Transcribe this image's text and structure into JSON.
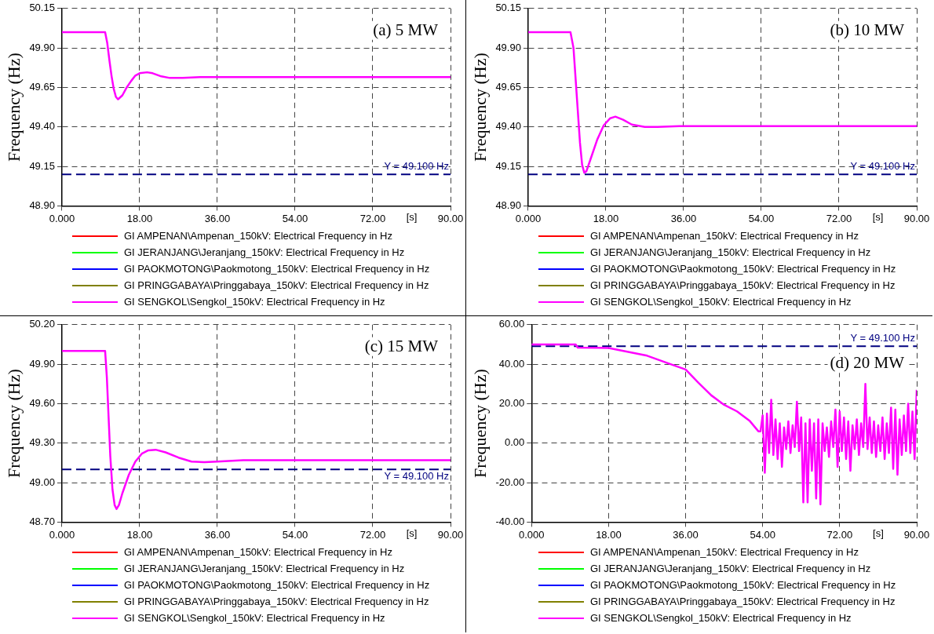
{
  "chart_data": [
    {
      "type": "line",
      "title": "(a) 5 MW",
      "ylabel": "Frequency (Hz)",
      "xlabel": "[s]",
      "grid": true,
      "legend": "bottom",
      "xlim": [
        0,
        90
      ],
      "xticks": [
        {
          "value": 0,
          "label": "0.000"
        },
        {
          "value": 18,
          "label": "18.00"
        },
        {
          "value": 36,
          "label": "36.00"
        },
        {
          "value": 54,
          "label": "54.00"
        },
        {
          "value": 72,
          "label": "72.00"
        },
        {
          "value": 90,
          "label": "90.00"
        }
      ],
      "ylim": [
        48.9,
        50.15
      ],
      "yticks": [
        {
          "value": 48.9,
          "label": "48.90"
        },
        {
          "value": 49.15,
          "label": "49.15"
        },
        {
          "value": 49.4,
          "label": "49.40"
        },
        {
          "value": 49.65,
          "label": "49.65"
        },
        {
          "value": 49.9,
          "label": "49.90"
        },
        {
          "value": 50.15,
          "label": "50.15"
        }
      ],
      "ref_lines": [
        {
          "axis": "y",
          "value": 49.1,
          "label": "Y = 49.100 Hz",
          "color": "#000080",
          "line_style": "dashed"
        }
      ],
      "x": [
        0,
        10,
        10.5,
        11,
        11.5,
        12,
        12.5,
        13,
        14,
        15,
        16,
        17,
        18,
        19.7,
        21,
        23,
        25,
        28,
        32,
        40,
        90
      ],
      "series": [
        {
          "name": "GI AMPENAN\\Ampenan_150kV: Electrical Frequency in Hz",
          "color": "#ff0000",
          "values": [
            null,
            null,
            null,
            null,
            null,
            null,
            null,
            null,
            null,
            null,
            null,
            null,
            null,
            null,
            null,
            null,
            null,
            null,
            null,
            null,
            null
          ]
        },
        {
          "name": "GI JERANJANG\\Jeranjang_150kV: Electrical Frequency in Hz",
          "color": "#00ff00",
          "values": [
            null,
            null,
            null,
            null,
            null,
            null,
            null,
            null,
            null,
            null,
            null,
            null,
            null,
            null,
            null,
            null,
            null,
            null,
            null,
            null,
            null
          ]
        },
        {
          "name": "GI PAOKMOTONG\\Paokmotong_150kV: Electrical Frequency in Hz",
          "color": "#0000ff",
          "values": [
            null,
            null,
            null,
            null,
            null,
            null,
            null,
            null,
            null,
            null,
            null,
            null,
            null,
            null,
            null,
            null,
            null,
            null,
            null,
            null,
            null
          ]
        },
        {
          "name": "GI PRINGGABAYA\\Pringgabaya_150kV: Electrical Frequency in Hz",
          "color": "#808000",
          "values": [
            null,
            null,
            null,
            null,
            null,
            null,
            null,
            null,
            null,
            null,
            null,
            null,
            null,
            null,
            null,
            null,
            null,
            null,
            null,
            null,
            null
          ]
        },
        {
          "name": "GI SENGKOL\\Sengkol_150kV: Electrical Frequency in Hz",
          "color": "#ff00ff",
          "values": [
            50,
            50,
            49.93,
            49.82,
            49.72,
            49.64,
            49.59,
            49.575,
            49.6,
            49.65,
            49.69,
            49.725,
            49.74,
            49.746,
            49.74,
            49.72,
            49.71,
            49.71,
            49.715,
            49.715,
            49.715
          ]
        }
      ]
    },
    {
      "type": "line",
      "title": "(b) 10 MW",
      "ylabel": "Frequency (Hz)",
      "xlabel": "[s]",
      "grid": true,
      "legend": "bottom",
      "xlim": [
        0,
        90
      ],
      "xticks": [
        {
          "value": 0,
          "label": "0.000"
        },
        {
          "value": 18,
          "label": "18.00"
        },
        {
          "value": 36,
          "label": "36.00"
        },
        {
          "value": 54,
          "label": "54.00"
        },
        {
          "value": 72,
          "label": "72.00"
        },
        {
          "value": 90,
          "label": "90.00"
        }
      ],
      "ylim": [
        48.9,
        50.15
      ],
      "yticks": [
        {
          "value": 48.9,
          "label": "48.90"
        },
        {
          "value": 49.15,
          "label": "49.15"
        },
        {
          "value": 49.4,
          "label": "49.40"
        },
        {
          "value": 49.65,
          "label": "49.65"
        },
        {
          "value": 49.9,
          "label": "49.90"
        },
        {
          "value": 50.15,
          "label": "50.15"
        }
      ],
      "ref_lines": [
        {
          "axis": "y",
          "value": 49.1,
          "label": "Y = 49.100 Hz",
          "color": "#000080",
          "line_style": "dashed"
        }
      ],
      "x": [
        0,
        9.8,
        10.5,
        11,
        11.5,
        12,
        12.5,
        13,
        13.5,
        14.5,
        16,
        17.5,
        19,
        20.2,
        22,
        24,
        27,
        30,
        35,
        90
      ],
      "series": [
        {
          "name": "GI AMPENAN\\Ampenan_150kV: Electrical Frequency in Hz",
          "color": "#ff0000",
          "values": [
            null,
            null,
            null,
            null,
            null,
            null,
            null,
            null,
            null,
            null,
            null,
            null,
            null,
            null,
            null,
            null,
            null,
            null,
            null,
            null
          ]
        },
        {
          "name": "GI JERANJANG\\Jeranjang_150kV: Electrical Frequency in Hz",
          "color": "#00ff00",
          "values": [
            null,
            null,
            null,
            null,
            null,
            null,
            null,
            null,
            null,
            null,
            null,
            null,
            null,
            null,
            null,
            null,
            null,
            null,
            null,
            null
          ]
        },
        {
          "name": "GI PAOKMOTONG\\Paokmotong_150kV: Electrical Frequency in Hz",
          "color": "#0000ff",
          "values": [
            null,
            null,
            null,
            null,
            null,
            null,
            null,
            null,
            null,
            null,
            null,
            null,
            null,
            null,
            null,
            null,
            null,
            null,
            null,
            null
          ]
        },
        {
          "name": "GI PRINGGABAYA\\Pringgabaya_150kV: Electrical Frequency in Hz",
          "color": "#808000",
          "values": [
            null,
            null,
            null,
            null,
            null,
            null,
            null,
            null,
            null,
            null,
            null,
            null,
            null,
            null,
            null,
            null,
            null,
            null,
            null,
            null
          ]
        },
        {
          "name": "GI SENGKOL\\Sengkol_150kV: Electrical Frequency in Hz",
          "color": "#ff00ff",
          "values": [
            50,
            50,
            49.9,
            49.7,
            49.5,
            49.3,
            49.16,
            49.11,
            49.12,
            49.2,
            49.32,
            49.41,
            49.455,
            49.465,
            49.445,
            49.415,
            49.4,
            49.4,
            49.405,
            49.405
          ]
        }
      ]
    },
    {
      "type": "line",
      "title": "(c) 15 MW",
      "ylabel": "Frequency (Hz)",
      "xlabel": "[s]",
      "grid": true,
      "legend": "bottom",
      "xlim": [
        0,
        90
      ],
      "xticks": [
        {
          "value": 0,
          "label": "0.000"
        },
        {
          "value": 18,
          "label": "18.00"
        },
        {
          "value": 36,
          "label": "36.00"
        },
        {
          "value": 54,
          "label": "54.00"
        },
        {
          "value": 72,
          "label": "72.00"
        },
        {
          "value": 90,
          "label": "90.00"
        }
      ],
      "ylim": [
        48.7,
        50.2
      ],
      "yticks": [
        {
          "value": 48.7,
          "label": "48.70"
        },
        {
          "value": 49.0,
          "label": "49.00"
        },
        {
          "value": 49.3,
          "label": "49.30"
        },
        {
          "value": 49.6,
          "label": "49.60"
        },
        {
          "value": 49.9,
          "label": "49.90"
        },
        {
          "value": 50.2,
          "label": "50.20"
        }
      ],
      "ref_lines": [
        {
          "axis": "y",
          "value": 49.1,
          "label": "Y = 49.100 Hz",
          "color": "#000080",
          "line_style": "dashed"
        }
      ],
      "x": [
        0,
        10,
        10.4,
        10.8,
        11.2,
        11.7,
        12.2,
        12.65,
        13.2,
        14,
        15.5,
        17,
        18.5,
        20,
        21.7,
        24,
        27,
        30,
        33,
        36,
        42,
        90
      ],
      "series": [
        {
          "name": "GI AMPENAN\\Ampenan_150kV: Electrical Frequency in Hz",
          "color": "#ff0000",
          "values": [
            null,
            null,
            null,
            null,
            null,
            null,
            null,
            null,
            null,
            null,
            null,
            null,
            null,
            null,
            null,
            null,
            null,
            null,
            null,
            null,
            null,
            null
          ]
        },
        {
          "name": "GI JERANJANG\\Jeranjang_150kV: Electrical Frequency in Hz",
          "color": "#00ff00",
          "values": [
            null,
            null,
            null,
            null,
            null,
            null,
            null,
            null,
            null,
            null,
            null,
            null,
            null,
            null,
            null,
            null,
            null,
            null,
            null,
            null,
            null,
            null
          ]
        },
        {
          "name": "GI PAOKMOTONG\\Paokmotong_150kV: Electrical Frequency in Hz",
          "color": "#0000ff",
          "values": [
            null,
            null,
            null,
            null,
            null,
            null,
            null,
            null,
            null,
            null,
            null,
            null,
            null,
            null,
            null,
            null,
            null,
            null,
            null,
            null,
            null,
            null
          ]
        },
        {
          "name": "GI PRINGGABAYA\\Pringgabaya_150kV: Electrical Frequency in Hz",
          "color": "#808000",
          "values": [
            null,
            null,
            null,
            null,
            null,
            null,
            null,
            null,
            null,
            null,
            null,
            null,
            null,
            null,
            null,
            null,
            null,
            null,
            null,
            null,
            null,
            null
          ]
        },
        {
          "name": "GI SENGKOL\\Sengkol_150kV: Electrical Frequency in Hz",
          "color": "#ff00ff",
          "values": [
            50,
            50,
            49.8,
            49.5,
            49.2,
            48.95,
            48.83,
            48.8,
            48.83,
            48.92,
            49.06,
            49.16,
            49.22,
            49.245,
            49.25,
            49.23,
            49.19,
            49.16,
            49.155,
            49.16,
            49.17,
            49.17
          ]
        }
      ]
    },
    {
      "type": "line",
      "title": "(d) 20 MW",
      "ylabel": "Frequency (Hz)",
      "xlabel": "[s]",
      "grid": true,
      "legend": "bottom",
      "xlim": [
        0,
        90
      ],
      "xticks": [
        {
          "value": 0,
          "label": "0.000"
        },
        {
          "value": 18,
          "label": "18.00"
        },
        {
          "value": 36,
          "label": "36.00"
        },
        {
          "value": 54,
          "label": "54.00"
        },
        {
          "value": 72,
          "label": "72.00"
        },
        {
          "value": 90,
          "label": "90.00"
        }
      ],
      "ylim": [
        -40,
        60
      ],
      "yticks": [
        {
          "value": -40,
          "label": "-40.00"
        },
        {
          "value": -20,
          "label": "-20.00"
        },
        {
          "value": 0,
          "label": "0.00"
        },
        {
          "value": 20,
          "label": "20.00"
        },
        {
          "value": 40,
          "label": "40.00"
        },
        {
          "value": 60,
          "label": "60.00"
        }
      ],
      "ref_lines": [
        {
          "axis": "y",
          "value": 49.1,
          "label": "Y = 49.100 Hz",
          "color": "#000080",
          "line_style": "dashed"
        }
      ],
      "x": [
        0,
        10.3,
        10.8,
        18,
        27,
        33,
        36,
        39,
        42,
        45,
        48,
        51,
        53,
        53.5,
        54,
        54.5,
        55,
        55.5,
        56,
        56.5,
        57,
        57.5,
        58,
        58.5,
        59,
        59.5,
        60,
        60.5,
        61,
        61.5,
        62,
        62.5,
        63,
        63.5,
        64,
        64.5,
        65,
        65.5,
        66,
        66.5,
        67,
        67.5,
        68,
        68.5,
        69,
        69.5,
        70,
        70.5,
        71,
        71.5,
        72,
        72.5,
        73,
        73.5,
        74,
        74.5,
        75,
        75.5,
        76,
        76.5,
        77,
        77.5,
        78,
        78.5,
        79,
        79.5,
        80,
        80.5,
        81,
        81.5,
        82,
        82.5,
        83,
        83.5,
        84,
        84.5,
        85,
        85.5,
        86,
        86.5,
        87,
        87.5,
        88,
        88.5,
        89,
        89.5,
        90
      ],
      "series": [
        {
          "name": "GI AMPENAN\\Ampenan_150kV: Electrical Frequency in Hz",
          "color": "#ff0000",
          "values": [
            null,
            null,
            null,
            null,
            null,
            null,
            null,
            null,
            null,
            null,
            null,
            null,
            null,
            null,
            null,
            null,
            null,
            null,
            null,
            null,
            null,
            null,
            null,
            null,
            null,
            null,
            null,
            null,
            null,
            null,
            null,
            null,
            null,
            null,
            null,
            null,
            null,
            null,
            null,
            null,
            null,
            null,
            null,
            null,
            null,
            null,
            null,
            null,
            null,
            null,
            null,
            null,
            null,
            null,
            null,
            null,
            null,
            null,
            null,
            null,
            null,
            null,
            null,
            null,
            null,
            null,
            null,
            null,
            null,
            null,
            null,
            null,
            null,
            null,
            null,
            null,
            null,
            null,
            null,
            null,
            null,
            null,
            null,
            null,
            null,
            null,
            null
          ]
        },
        {
          "name": "GI JERANJANG\\Jeranjang_150kV: Electrical Frequency in Hz",
          "color": "#00ff00",
          "values": [
            null,
            null,
            null,
            null,
            null,
            null,
            null,
            null,
            null,
            null,
            null,
            null,
            null,
            null,
            null,
            null,
            null,
            null,
            null,
            null,
            null,
            null,
            null,
            null,
            null,
            null,
            null,
            null,
            null,
            null,
            null,
            null,
            null,
            null,
            null,
            null,
            null,
            null,
            null,
            null,
            null,
            null,
            null,
            null,
            null,
            null,
            null,
            null,
            null,
            null,
            null,
            null,
            null,
            null,
            null,
            null,
            null,
            null,
            null,
            null,
            null,
            null,
            null,
            null,
            null,
            null,
            null,
            null,
            null,
            null,
            null,
            null,
            null,
            null,
            null,
            null,
            null,
            null,
            null,
            null,
            null,
            null,
            null,
            null,
            null,
            null,
            null
          ]
        },
        {
          "name": "GI PAOKMOTONG\\Paokmotong_150kV: Electrical Frequency in Hz",
          "color": "#0000ff",
          "values": [
            null,
            null,
            null,
            null,
            null,
            null,
            null,
            null,
            null,
            null,
            null,
            null,
            null,
            null,
            null,
            null,
            null,
            null,
            null,
            null,
            null,
            null,
            null,
            null,
            null,
            null,
            null,
            null,
            null,
            null,
            null,
            null,
            null,
            null,
            null,
            null,
            null,
            null,
            null,
            null,
            null,
            null,
            null,
            null,
            null,
            null,
            null,
            null,
            null,
            null,
            null,
            null,
            null,
            null,
            null,
            null,
            null,
            null,
            null,
            null,
            null,
            null,
            null,
            null,
            null,
            null,
            null,
            null,
            null,
            null,
            null,
            null,
            null,
            null,
            null,
            null,
            null,
            null,
            null,
            null,
            null,
            null,
            null,
            null,
            null,
            null,
            null
          ]
        },
        {
          "name": "GI PRINGGABAYA\\Pringgabaya_150kV: Electrical Frequency in Hz",
          "color": "#808000",
          "values": [
            null,
            null,
            null,
            null,
            null,
            null,
            null,
            null,
            null,
            null,
            null,
            null,
            null,
            null,
            null,
            null,
            null,
            null,
            null,
            null,
            null,
            null,
            null,
            null,
            null,
            null,
            null,
            null,
            null,
            null,
            null,
            null,
            null,
            null,
            null,
            null,
            null,
            null,
            null,
            null,
            null,
            null,
            null,
            null,
            null,
            null,
            null,
            null,
            null,
            null,
            null,
            null,
            null,
            null,
            null,
            null,
            null,
            null,
            null,
            null,
            null,
            null,
            null,
            null,
            null,
            null,
            null,
            null,
            null,
            null,
            null,
            null,
            null,
            null,
            null,
            null,
            null,
            null,
            null,
            null,
            null,
            null,
            null,
            null,
            null,
            null,
            null
          ]
        },
        {
          "name": "GI SENGKOL\\Sengkol_150kV: Electrical Frequency in Hz",
          "color": "#ff00ff",
          "values": [
            50,
            50,
            48.4,
            48.2,
            44.3,
            39.6,
            37.3,
            30.6,
            24.2,
            19.4,
            16.1,
            11.2,
            6,
            6,
            14,
            -15,
            15,
            -5,
            22,
            -6,
            12,
            -8,
            10,
            -12,
            8,
            -3,
            11,
            -5,
            9,
            -2,
            21,
            -4,
            13,
            -30,
            10,
            -30,
            12,
            -14,
            10,
            -28,
            12,
            -31,
            10,
            -4,
            8,
            -7,
            11,
            -2,
            17,
            -12,
            16,
            -4,
            13,
            -8,
            11,
            -14,
            9,
            -3,
            12,
            -6,
            10,
            -2,
            30,
            -3,
            13,
            -5,
            11,
            -7,
            9,
            -4,
            13,
            -8,
            10,
            -5,
            18,
            -13,
            17,
            -16,
            12,
            -6,
            14,
            -4,
            20,
            -5,
            16,
            -8,
            27
          ]
        }
      ]
    }
  ]
}
